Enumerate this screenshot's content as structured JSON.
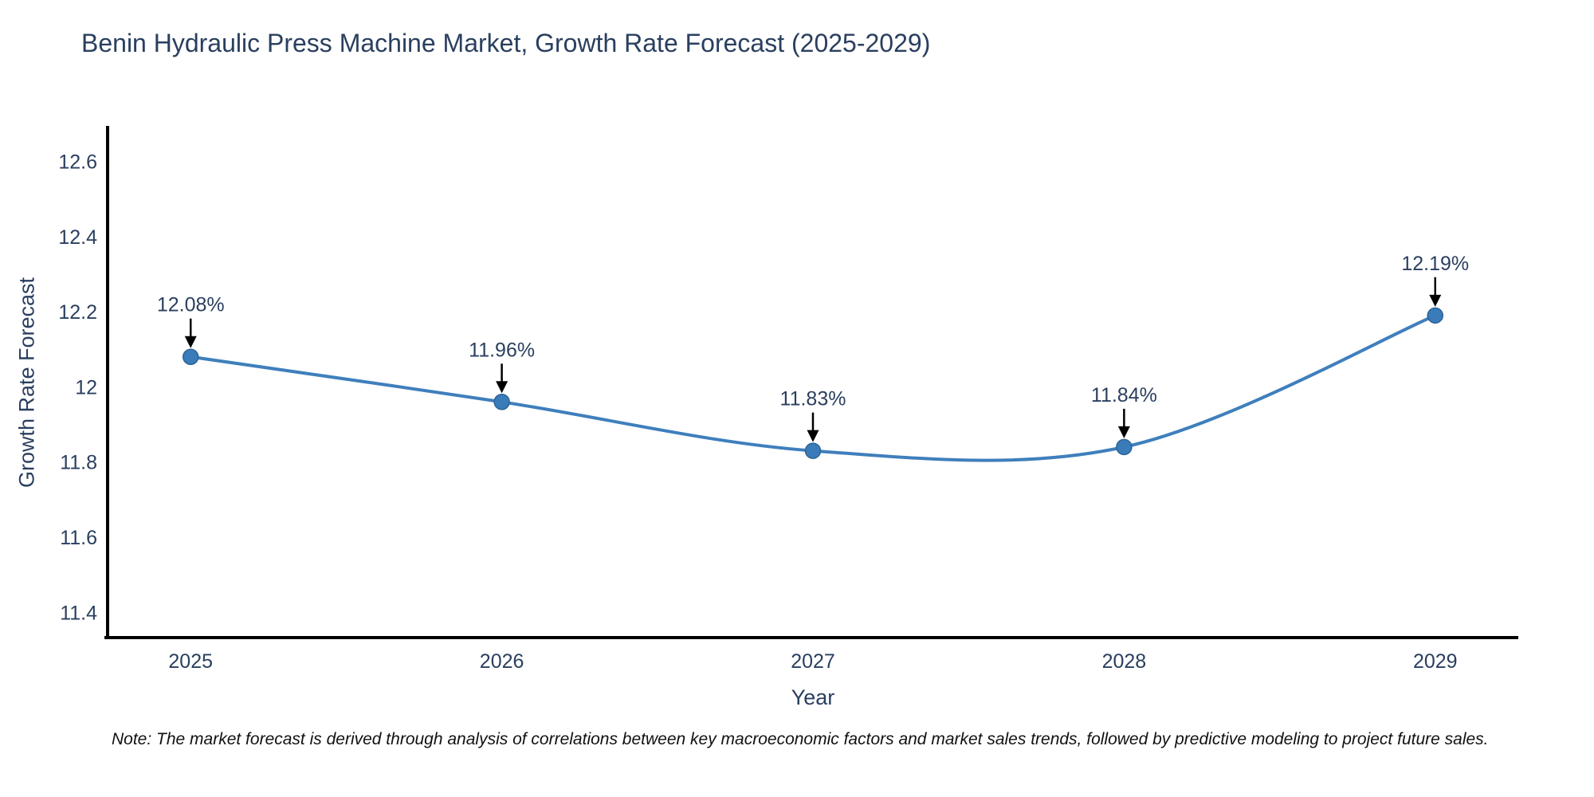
{
  "title": "Benin Hydraulic Press Machine Market, Growth Rate Forecast (2025-2029)",
  "note": "Note: The market forecast is derived through analysis of correlations between key macroeconomic factors and market sales trends, followed by predictive modeling to project future sales.",
  "chart_data": {
    "type": "line",
    "title": "Benin Hydraulic Press Machine Market, Growth Rate Forecast (2025-2029)",
    "xlabel": "Year",
    "ylabel": "Growth Rate Forecast",
    "x": [
      2025,
      2026,
      2027,
      2028,
      2029
    ],
    "series": [
      {
        "name": "Growth Rate Forecast",
        "values": [
          12.08,
          11.96,
          11.83,
          11.84,
          12.19
        ],
        "point_labels": [
          "12.08%",
          "11.96%",
          "11.83%",
          "11.84%",
          "12.19%"
        ]
      }
    ],
    "x_tick_labels": [
      "2025",
      "2026",
      "2027",
      "2028",
      "2029"
    ],
    "y_ticks": [
      11.4,
      11.6,
      11.8,
      12.0,
      12.2,
      12.4,
      12.6
    ],
    "y_tick_labels": [
      "11.4",
      "11.6",
      "11.8",
      "12",
      "12.2",
      "12.4",
      "12.6"
    ],
    "xlim": [
      2024.733,
      2029.267
    ],
    "ylim": [
      11.333,
      12.69
    ],
    "grid": false,
    "legend": "none",
    "line_shape": "spline",
    "colors": {
      "line": "#3f7fbc",
      "marker": "#3a7cba",
      "marker_edge": "#2d6396",
      "arrow": "#000000",
      "axis": "#000000",
      "text": "#2a3f5f",
      "note": "#111111"
    }
  }
}
